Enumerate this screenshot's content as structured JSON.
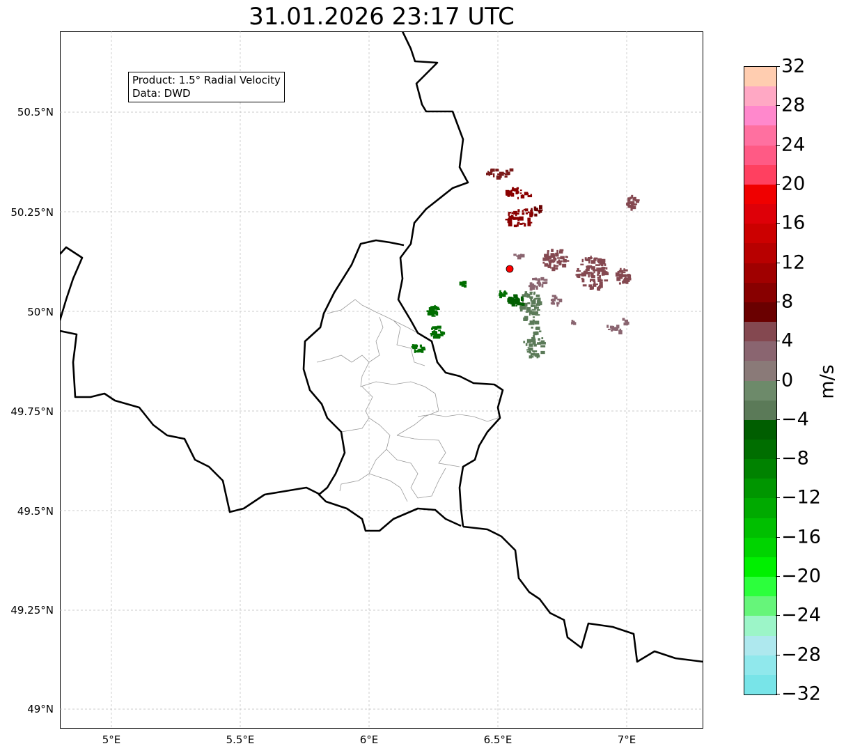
{
  "title": "31.01.2026 23:17 UTC",
  "info": {
    "product": "Product: 1.5° Radial Velocity",
    "data": "Data: DWD"
  },
  "lat_labels": [
    "50.5°N",
    "50.25°N",
    "50°N",
    "49.75°N",
    "49.5°N",
    "49.25°N",
    "49°N"
  ],
  "lon_labels": [
    "5°E",
    "5.5°E",
    "6°E",
    "6.5°E",
    "7°E"
  ],
  "colorbar": {
    "unit": "m/s",
    "ticks": [
      "32",
      "28",
      "24",
      "20",
      "16",
      "12",
      "8",
      "4",
      "0",
      "−4",
      "−8",
      "−12",
      "−16",
      "−20",
      "−24",
      "−28",
      "−32"
    ],
    "colors": [
      "#ffcdb0",
      "#ffa8c4",
      "#ff88cc",
      "#ff70a0",
      "#ff5a85",
      "#ff4060",
      "#f00000",
      "#de0008",
      "#cc0000",
      "#b80000",
      "#a00000",
      "#880000",
      "#6a0000",
      "#844850",
      "#8a6570",
      "#8a7a78",
      "#6d8a6a",
      "#5b7a58",
      "#005e00",
      "#006e00",
      "#008200",
      "#009600",
      "#00aa00",
      "#00bf00",
      "#00d400",
      "#00f000",
      "#2cff3c",
      "#66f57a",
      "#9cf5c8",
      "#aee8ee",
      "#90e8ec",
      "#78e4e8"
    ]
  },
  "radar_site_color": "#ff0000"
}
